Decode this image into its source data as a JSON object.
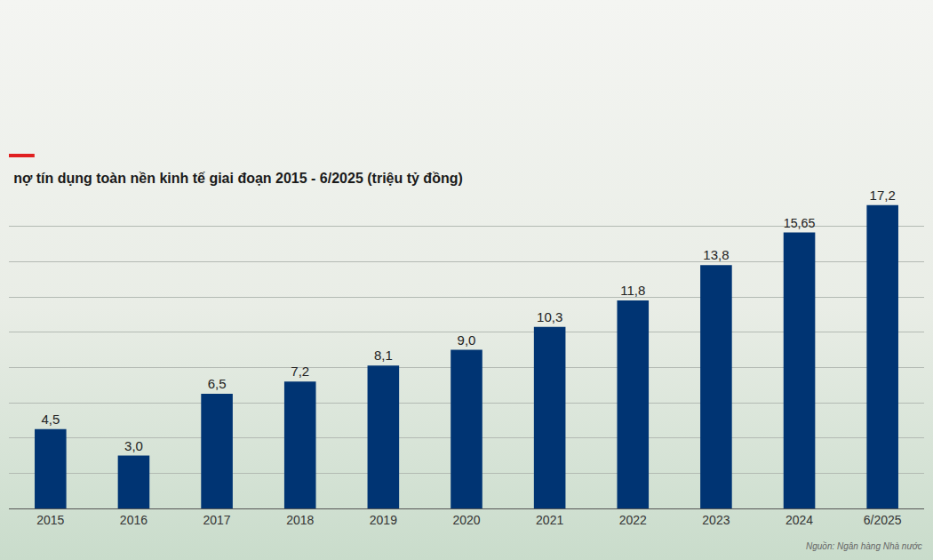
{
  "chart_data": {
    "type": "bar",
    "title": "nợ tín dụng toàn nền kinh tế giai đoạn 2015 - 6/2025 (triệu tỷ đồng)",
    "source": "Nguồn: Ngân hàng Nhà nước",
    "categories": [
      "2015",
      "2016",
      "2017",
      "2018",
      "2019",
      "2020",
      "2021",
      "2022",
      "2023",
      "2024",
      "6/2025"
    ],
    "values": [
      4.5,
      3.0,
      6.5,
      7.2,
      8.1,
      9.0,
      10.3,
      11.8,
      13.8,
      15.65,
      17.2
    ],
    "value_labels": [
      "4,5",
      "3,0",
      "6,5",
      "7,2",
      "8,1",
      "9,0",
      "10,3",
      "11,8",
      "13,8",
      "15,65",
      "17,2"
    ],
    "color": "#003473",
    "ylim": [
      0,
      18
    ],
    "yticks": [
      0,
      2,
      4,
      6,
      8,
      10,
      12,
      14,
      16,
      18
    ],
    "grid": true,
    "data_labels": true,
    "tick_labels": "x"
  }
}
